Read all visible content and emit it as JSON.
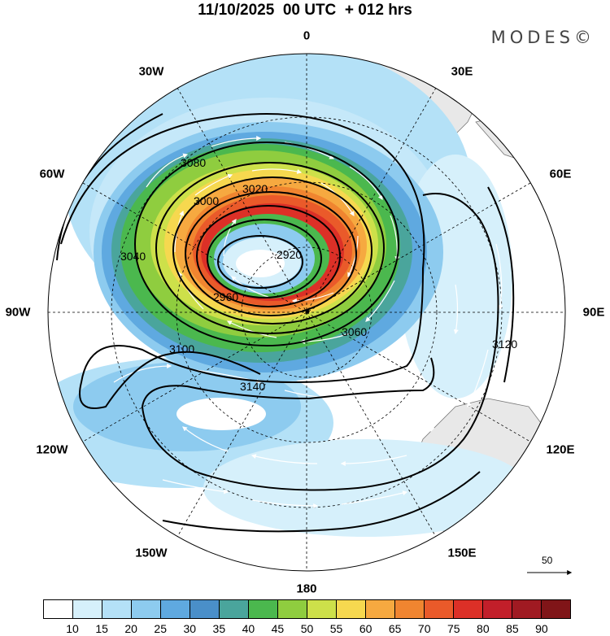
{
  "title": "11/10/2025  00 UTC  + 012 hrs",
  "logo": "MODES©",
  "longitude_labels": [
    "0",
    "30E",
    "60E",
    "90E",
    "120E",
    "150E",
    "180",
    "150W",
    "120W",
    "90W",
    "60W",
    "30W"
  ],
  "reference_vector": "50",
  "colorbar": {
    "labels": [
      "10",
      "15",
      "20",
      "25",
      "30",
      "35",
      "40",
      "45",
      "50",
      "55",
      "60",
      "65",
      "70",
      "75",
      "80",
      "85",
      "90"
    ],
    "colors": [
      "#ffffff",
      "#d6f0fb",
      "#b4e1f7",
      "#8dcbef",
      "#5fa9e0",
      "#4a8fc9",
      "#4aa59c",
      "#4bb84e",
      "#8fcd3f",
      "#cde04a",
      "#f6d84f",
      "#f6a940",
      "#f08530",
      "#ea5a2a",
      "#dc3027",
      "#c21f2a",
      "#a01a22",
      "#801518"
    ]
  },
  "contour_labels": [
    "2920",
    "2960",
    "3000",
    "3020",
    "3040",
    "3060",
    "3080",
    "3100",
    "3120",
    "3140"
  ],
  "legend_colors": {
    "land": "#e8e8e8",
    "coast": "#777777",
    "contour": "#000000"
  }
}
